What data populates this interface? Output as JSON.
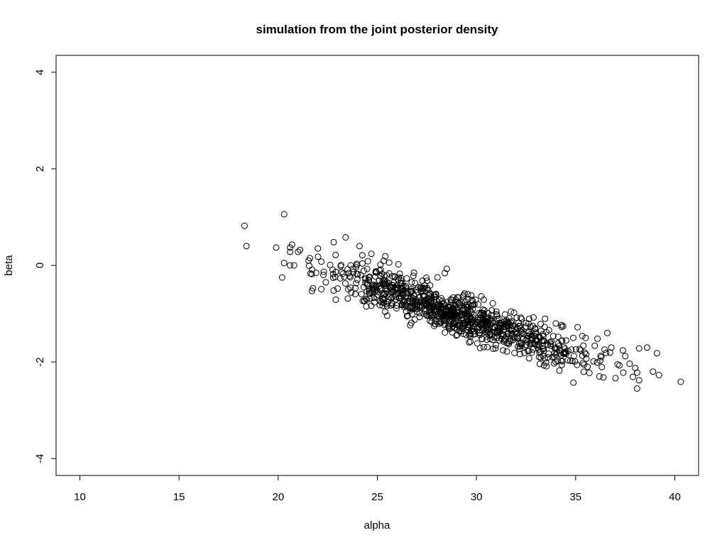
{
  "chart_data": {
    "type": "scatter",
    "title": "simulation from the joint posterior density",
    "xlabel": "alpha",
    "ylabel": "beta",
    "xlim": [
      8.8,
      41.2
    ],
    "ylim": [
      -4.35,
      4.35
    ],
    "x_ticks": [
      10,
      15,
      20,
      25,
      30,
      35,
      40
    ],
    "y_ticks": [
      -4,
      -2,
      0,
      2,
      4
    ],
    "x_tick_labels": [
      "10",
      "15",
      "20",
      "25",
      "30",
      "35",
      "40"
    ],
    "y_tick_labels": [
      "-4",
      "-2",
      "0",
      "2",
      "4"
    ],
    "grid": false,
    "legend": "none",
    "marker": "open-circle",
    "n_points": 1000,
    "trend": {
      "slope": -0.14,
      "intercept": 3.03,
      "residual_sd": 0.22
    },
    "x_distribution": {
      "mean": 29.0,
      "sd": 3.4
    },
    "points_notable": [
      {
        "x": 18.3,
        "y": 0.82
      },
      {
        "x": 18.4,
        "y": 0.4
      },
      {
        "x": 20.3,
        "y": 1.06
      },
      {
        "x": 19.9,
        "y": 0.37
      },
      {
        "x": 20.2,
        "y": -0.25
      },
      {
        "x": 20.7,
        "y": 0.43
      },
      {
        "x": 20.6,
        "y": 0.37
      },
      {
        "x": 20.6,
        "y": 0.28
      },
      {
        "x": 20.3,
        "y": 0.05
      },
      {
        "x": 20.6,
        "y": 0.0
      },
      {
        "x": 20.8,
        "y": 0.0
      },
      {
        "x": 21.1,
        "y": 0.32
      },
      {
        "x": 21.0,
        "y": 0.28
      },
      {
        "x": 21.6,
        "y": 0.15
      },
      {
        "x": 21.7,
        "y": -0.18
      },
      {
        "x": 22.0,
        "y": 0.35
      },
      {
        "x": 22.8,
        "y": 0.48
      },
      {
        "x": 23.4,
        "y": 0.58
      },
      {
        "x": 22.8,
        "y": -0.52
      },
      {
        "x": 22.4,
        "y": -0.35
      },
      {
        "x": 24.1,
        "y": 0.4
      },
      {
        "x": 24.7,
        "y": 0.24
      },
      {
        "x": 25.4,
        "y": 0.19
      },
      {
        "x": 28.5,
        "y": -0.07
      },
      {
        "x": 28.4,
        "y": -0.16
      },
      {
        "x": 34.0,
        "y": -1.2
      },
      {
        "x": 35.1,
        "y": -1.28
      },
      {
        "x": 35.5,
        "y": -1.5
      },
      {
        "x": 36.1,
        "y": -1.52
      },
      {
        "x": 36.6,
        "y": -1.4
      },
      {
        "x": 36.8,
        "y": -1.7
      },
      {
        "x": 37.5,
        "y": -1.88
      },
      {
        "x": 38.2,
        "y": -1.72
      },
      {
        "x": 38.6,
        "y": -1.7
      },
      {
        "x": 39.1,
        "y": -1.82
      },
      {
        "x": 38.9,
        "y": -2.2
      },
      {
        "x": 39.2,
        "y": -2.27
      },
      {
        "x": 38.1,
        "y": -2.22
      },
      {
        "x": 38.2,
        "y": -2.38
      },
      {
        "x": 38.1,
        "y": -2.55
      },
      {
        "x": 40.3,
        "y": -2.41
      },
      {
        "x": 36.2,
        "y": -2.3
      },
      {
        "x": 36.4,
        "y": -2.32
      },
      {
        "x": 35.6,
        "y": -2.1
      },
      {
        "x": 37.4,
        "y": -2.22
      },
      {
        "x": 33.4,
        "y": -2.07
      },
      {
        "x": 34.3,
        "y": -2.06
      }
    ]
  }
}
